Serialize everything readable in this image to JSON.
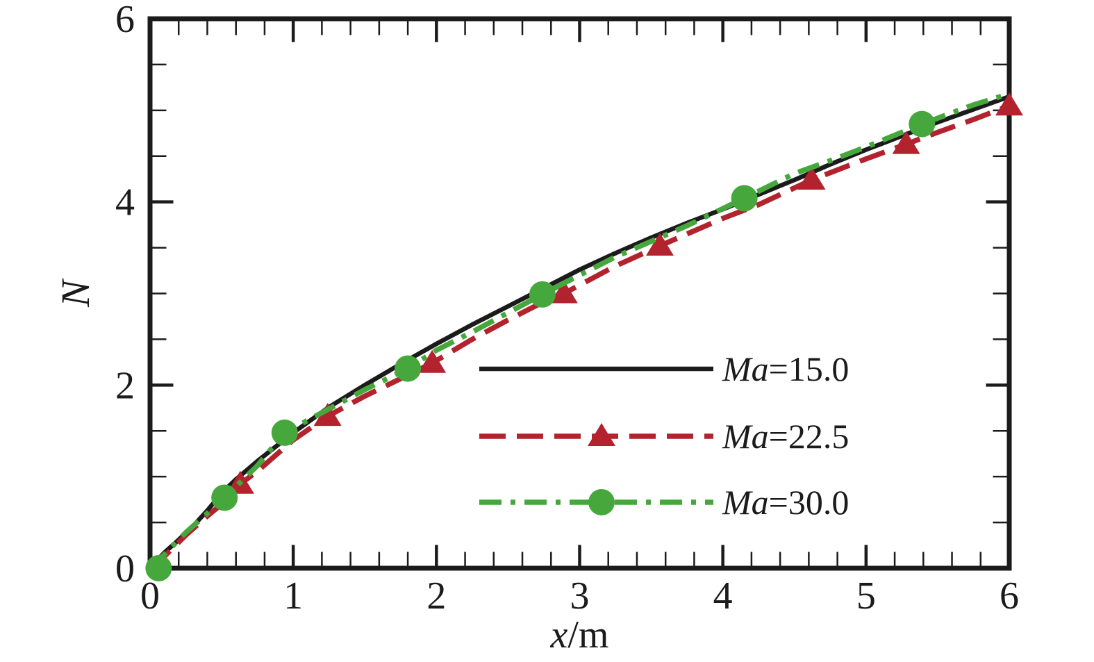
{
  "chart_data": {
    "type": "line",
    "title": "",
    "xlabel": "x/m",
    "ylabel": "N",
    "xlim": [
      0,
      6
    ],
    "ylim": [
      0,
      6
    ],
    "x_major_ticks": [
      0,
      1,
      2,
      3,
      4,
      5,
      6
    ],
    "x_ticklabels": [
      "0",
      "1",
      "2",
      "3",
      "4",
      "5",
      "6"
    ],
    "x_minor_step": 0.2,
    "y_major_ticks": [
      0,
      2,
      4,
      6
    ],
    "y_ticklabels": [
      "0",
      "2",
      "4",
      "6"
    ],
    "y_minor_step": 0.5,
    "grid": false,
    "legend_position": "inside lower right",
    "series": [
      {
        "name": "Ma=15.0",
        "color": "#1b1b1b",
        "line_style": "solid",
        "line_width": 6.5,
        "marker": "none",
        "points": [
          [
            0,
            0
          ],
          [
            0.1,
            0.17
          ],
          [
            0.2,
            0.31
          ],
          [
            0.3,
            0.46
          ],
          [
            0.4,
            0.63
          ],
          [
            0.5,
            0.82
          ],
          [
            0.6,
            0.97
          ],
          [
            0.75,
            1.17
          ],
          [
            1,
            1.48
          ],
          [
            1.25,
            1.76
          ],
          [
            1.5,
            2.0
          ],
          [
            1.75,
            2.23
          ],
          [
            2,
            2.45
          ],
          [
            2.25,
            2.66
          ],
          [
            2.5,
            2.86
          ],
          [
            2.75,
            3.06
          ],
          [
            3,
            3.26
          ],
          [
            3.25,
            3.44
          ],
          [
            3.5,
            3.61
          ],
          [
            3.75,
            3.77
          ],
          [
            4,
            3.92
          ],
          [
            4.25,
            4.08
          ],
          [
            4.5,
            4.24
          ],
          [
            4.75,
            4.41
          ],
          [
            5,
            4.57
          ],
          [
            5.25,
            4.72
          ],
          [
            5.5,
            4.87
          ],
          [
            5.75,
            5.01
          ],
          [
            6,
            5.15
          ]
        ]
      },
      {
        "name": "Ma=22.5",
        "color": "#b2232e",
        "line_style": "dashed",
        "line_width": 7.5,
        "marker": "triangle",
        "points": [
          [
            0,
            0
          ],
          [
            0.1,
            0.13
          ],
          [
            0.25,
            0.36
          ],
          [
            0.4,
            0.57
          ],
          [
            0.5,
            0.7
          ],
          [
            0.63,
            0.92
          ],
          [
            0.75,
            1.06
          ],
          [
            1,
            1.4
          ],
          [
            1.24,
            1.66
          ],
          [
            1.5,
            1.88
          ],
          [
            1.75,
            2.07
          ],
          [
            1.97,
            2.24
          ],
          [
            2.25,
            2.5
          ],
          [
            2.5,
            2.71
          ],
          [
            2.7,
            2.87
          ],
          [
            2.89,
            3.0
          ],
          [
            3.25,
            3.3
          ],
          [
            3.56,
            3.52
          ],
          [
            3.75,
            3.65
          ],
          [
            4,
            3.82
          ],
          [
            4.25,
            3.97
          ],
          [
            4.62,
            4.24
          ],
          [
            5,
            4.47
          ],
          [
            5.28,
            4.63
          ],
          [
            5.5,
            4.76
          ],
          [
            5.75,
            4.9
          ],
          [
            6,
            5.05
          ]
        ],
        "marker_points": [
          [
            0.63,
            0.92
          ],
          [
            1.24,
            1.66
          ],
          [
            1.97,
            2.24
          ],
          [
            2.89,
            3.0
          ],
          [
            3.56,
            3.52
          ],
          [
            4.62,
            4.24
          ],
          [
            5.28,
            4.63
          ],
          [
            6.0,
            5.05
          ]
        ]
      },
      {
        "name": "Ma=30.0",
        "color": "#46a83c",
        "line_style": "dashdot",
        "line_width": 7.5,
        "marker": "circle",
        "points": [
          [
            0,
            0
          ],
          [
            0.1,
            0.15
          ],
          [
            0.25,
            0.39
          ],
          [
            0.4,
            0.6
          ],
          [
            0.52,
            0.77
          ],
          [
            0.75,
            1.12
          ],
          [
            0.94,
            1.48
          ],
          [
            1.25,
            1.74
          ],
          [
            1.5,
            1.95
          ],
          [
            1.8,
            2.18
          ],
          [
            2,
            2.38
          ],
          [
            2.25,
            2.58
          ],
          [
            2.5,
            2.79
          ],
          [
            2.74,
            2.99
          ],
          [
            3,
            3.2
          ],
          [
            3.25,
            3.4
          ],
          [
            3.5,
            3.57
          ],
          [
            3.75,
            3.74
          ],
          [
            4.15,
            4.04
          ],
          [
            4.5,
            4.31
          ],
          [
            4.75,
            4.45
          ],
          [
            5,
            4.6
          ],
          [
            5.39,
            4.85
          ],
          [
            5.75,
            5.06
          ],
          [
            6,
            5.18
          ]
        ],
        "marker_points": [
          [
            0.06,
            0.0
          ],
          [
            0.52,
            0.77
          ],
          [
            0.94,
            1.48
          ],
          [
            1.8,
            2.18
          ],
          [
            2.74,
            2.99
          ],
          [
            4.15,
            4.04
          ],
          [
            5.39,
            4.85
          ]
        ]
      }
    ],
    "legend": {
      "entries": [
        "Ma=15.0",
        "Ma=22.5",
        "Ma=30.0"
      ]
    }
  }
}
